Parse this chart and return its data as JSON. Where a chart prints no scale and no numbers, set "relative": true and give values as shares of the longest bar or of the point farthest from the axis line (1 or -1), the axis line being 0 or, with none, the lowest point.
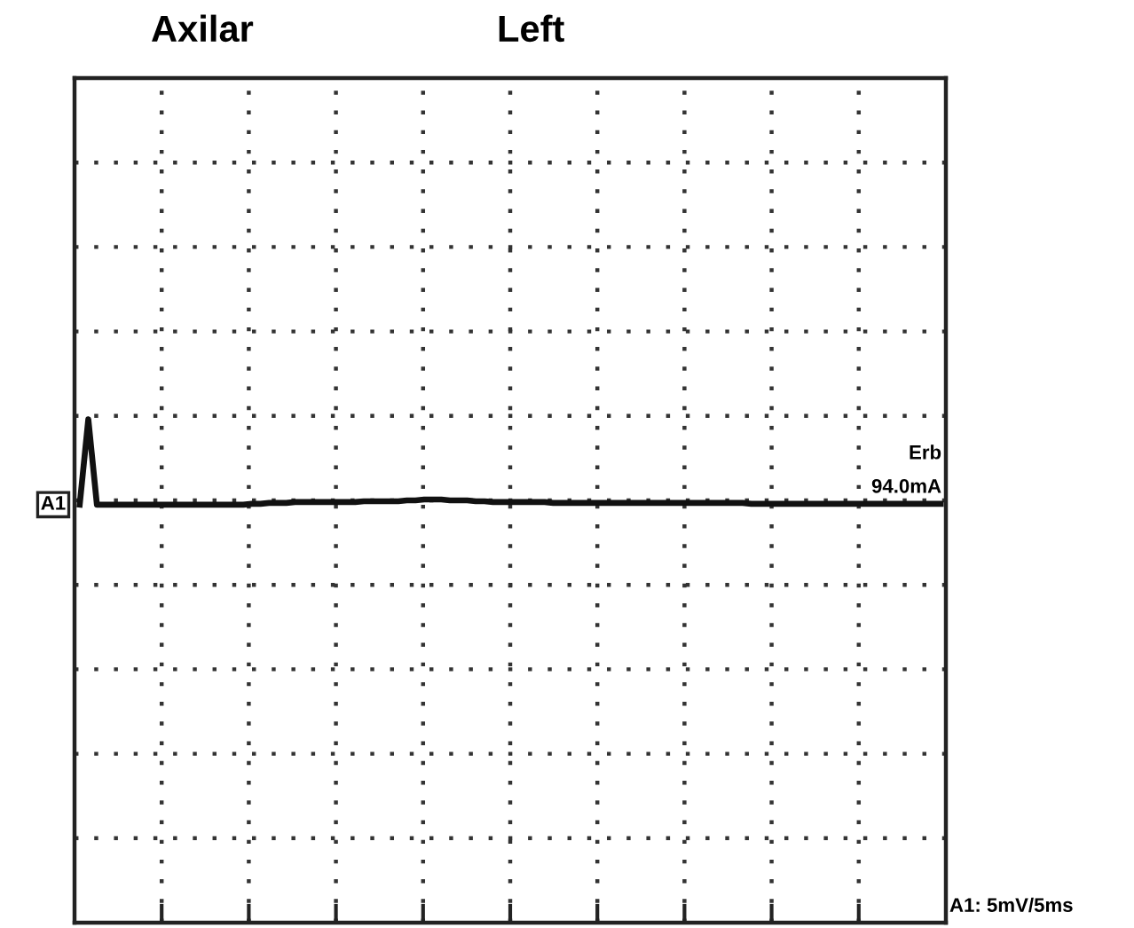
{
  "chart_data": {
    "type": "line",
    "title": "Axilar",
    "subtitle": "Left",
    "relative": true,
    "grid": true,
    "marker": "none",
    "line_style": "solid",
    "categories": [
      null,
      null,
      null,
      null,
      null,
      null,
      null,
      null,
      null,
      null,
      null,
      null,
      null,
      null,
      null,
      null,
      null,
      null,
      null,
      null,
      null,
      null,
      null,
      null,
      null,
      null,
      null,
      null,
      null,
      null,
      null,
      null,
      null,
      null,
      null,
      null,
      null,
      null,
      null,
      null,
      null,
      null,
      null,
      null,
      null,
      null,
      null,
      null,
      null,
      null,
      null,
      null,
      null,
      null,
      null,
      null,
      null,
      null,
      null,
      null,
      null,
      null,
      null,
      null,
      null,
      null,
      null,
      null,
      null,
      null,
      null,
      null,
      null,
      null,
      null,
      null,
      null,
      null,
      null,
      null,
      null,
      null,
      null,
      null,
      null,
      null,
      null,
      null,
      null,
      null,
      null,
      null,
      null,
      null,
      null,
      null,
      null,
      null,
      null,
      null,
      null
    ],
    "series": [
      {
        "color": "#111111",
        "values": [
          0,
          1,
          0,
          0,
          0,
          0,
          0,
          0,
          0,
          0,
          0,
          0,
          0,
          0,
          0,
          0,
          0,
          0,
          0,
          0,
          0.01,
          0.01,
          0.02,
          0.02,
          0.02,
          0.03,
          0.03,
          0.03,
          0.03,
          0.03,
          0.03,
          0.03,
          0.03,
          0.04,
          0.04,
          0.04,
          0.04,
          0.04,
          0.05,
          0.05,
          0.06,
          0.06,
          0.06,
          0.05,
          0.05,
          0.05,
          0.04,
          0.04,
          0.03,
          0.03,
          0.03,
          0.03,
          0.03,
          0.03,
          0.03,
          0.02,
          0.02,
          0.02,
          0.02,
          0.02,
          0.02,
          0.02,
          0.02,
          0.02,
          0.02,
          0.02,
          0.02,
          0.02,
          0.02,
          0.02,
          0.02,
          0.02,
          0.02,
          0.02,
          0.02,
          0.02,
          0.02,
          0.02,
          0.01,
          0.01,
          0.01,
          0.01,
          0.01,
          0.01,
          0.01,
          0.01,
          0.01,
          0.01,
          0.01,
          0.01,
          0.01,
          0.01,
          0.01,
          0.01,
          0.01,
          0.01,
          0.01,
          0.01,
          0.01,
          0.01,
          0.01
        ]
      }
    ],
    "annotations": [
      "A1",
      "Erb",
      "94.0mA",
      "A1: 5mV/5ms"
    ]
  }
}
